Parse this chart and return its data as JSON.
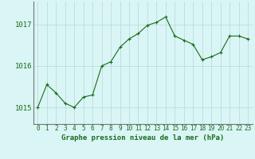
{
  "x": [
    0,
    1,
    2,
    3,
    4,
    5,
    6,
    7,
    8,
    9,
    10,
    11,
    12,
    13,
    14,
    15,
    16,
    17,
    18,
    19,
    20,
    21,
    22,
    23
  ],
  "y": [
    1015.0,
    1015.55,
    1015.35,
    1015.1,
    1015.0,
    1015.25,
    1015.3,
    1016.0,
    1016.1,
    1016.45,
    1016.65,
    1016.78,
    1016.98,
    1017.05,
    1017.18,
    1016.72,
    1016.62,
    1016.52,
    1016.15,
    1016.22,
    1016.32,
    1016.72,
    1016.72,
    1016.65
  ],
  "line_color": "#1a6b1a",
  "marker": "+",
  "marker_color": "#1a6b1a",
  "bg_color": "#d9f5f5",
  "grid_color": "#b8d8d8",
  "xlabel": "Graphe pression niveau de la mer (hPa)",
  "xlabel_color": "#1a6b1a",
  "tick_label_color": "#1a6b1a",
  "ylim": [
    1014.6,
    1017.55
  ],
  "yticks": [
    1015,
    1016,
    1017
  ],
  "xlim": [
    -0.5,
    23.5
  ],
  "xticks": [
    0,
    1,
    2,
    3,
    4,
    5,
    6,
    7,
    8,
    9,
    10,
    11,
    12,
    13,
    14,
    15,
    16,
    17,
    18,
    19,
    20,
    21,
    22,
    23
  ],
  "left_spine_color": "#777777",
  "bottom_spine_color": "#777777"
}
